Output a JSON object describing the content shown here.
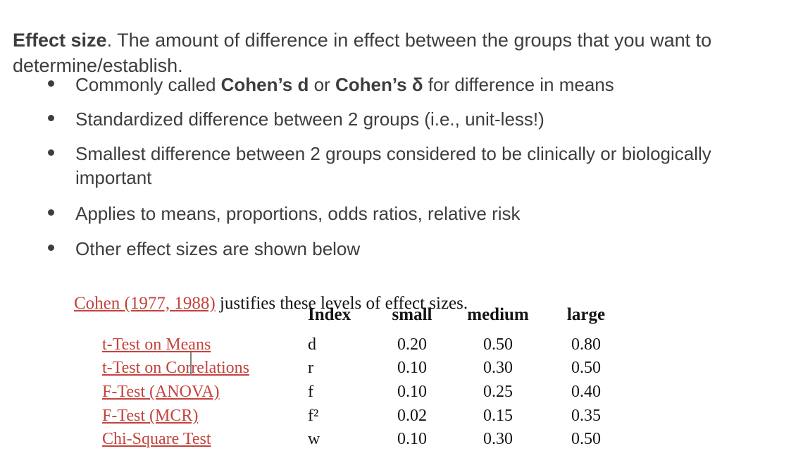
{
  "intro": {
    "bold": "Effect size",
    "rest": ". The amount of difference in effect between the groups that you want to\ndetermine/establish."
  },
  "bullets": [
    {
      "parts": [
        {
          "t": "Commonly called "
        },
        {
          "t": "Cohen’s d",
          "b": true
        },
        {
          "t": " or "
        },
        {
          "t": "Cohen’s δ",
          "b": true
        },
        {
          "t": " for difference in means"
        }
      ]
    },
    {
      "parts": [
        {
          "t": "Standardized difference between 2 groups (i.e., unit-less!)"
        }
      ]
    },
    {
      "parts": [
        {
          "t": "Smallest difference between 2 groups considered to be clinically or biologically\nimportant"
        }
      ]
    },
    {
      "parts": [
        {
          "t": "Applies to means, proportions, odds ratios, relative risk"
        }
      ]
    },
    {
      "parts": [
        {
          "t": "Other effect sizes are shown below"
        }
      ]
    }
  ],
  "note": {
    "link": "Cohen (1977, 1988)",
    "rest": " justifies these levels of effect sizes."
  },
  "table": {
    "headers": {
      "index": "Index",
      "small": "small",
      "medium": "medium",
      "large": "large"
    },
    "rows": [
      {
        "name": "t-Test on Means",
        "index": "d",
        "small": "0.20",
        "medium": "0.50",
        "large": "0.80"
      },
      {
        "name": "t-Test on Correlations",
        "index": "r",
        "small": "0.10",
        "medium": "0.30",
        "large": "0.50"
      },
      {
        "name": "F-Test (ANOVA)",
        "index": "f",
        "small": "0.10",
        "medium": "0.25",
        "large": "0.40"
      },
      {
        "name": "F-Test (MCR)",
        "index": "f²",
        "small": "0.02",
        "medium": "0.15",
        "large": "0.35"
      },
      {
        "name": "Chi-Square Test",
        "index": "w",
        "small": "0.10",
        "medium": "0.30",
        "large": "0.50"
      }
    ]
  },
  "colors": {
    "text_gray": "#3d3d3d",
    "serif_black": "#141414",
    "link_red": "#c4433d",
    "caret_gray": "#808080"
  }
}
